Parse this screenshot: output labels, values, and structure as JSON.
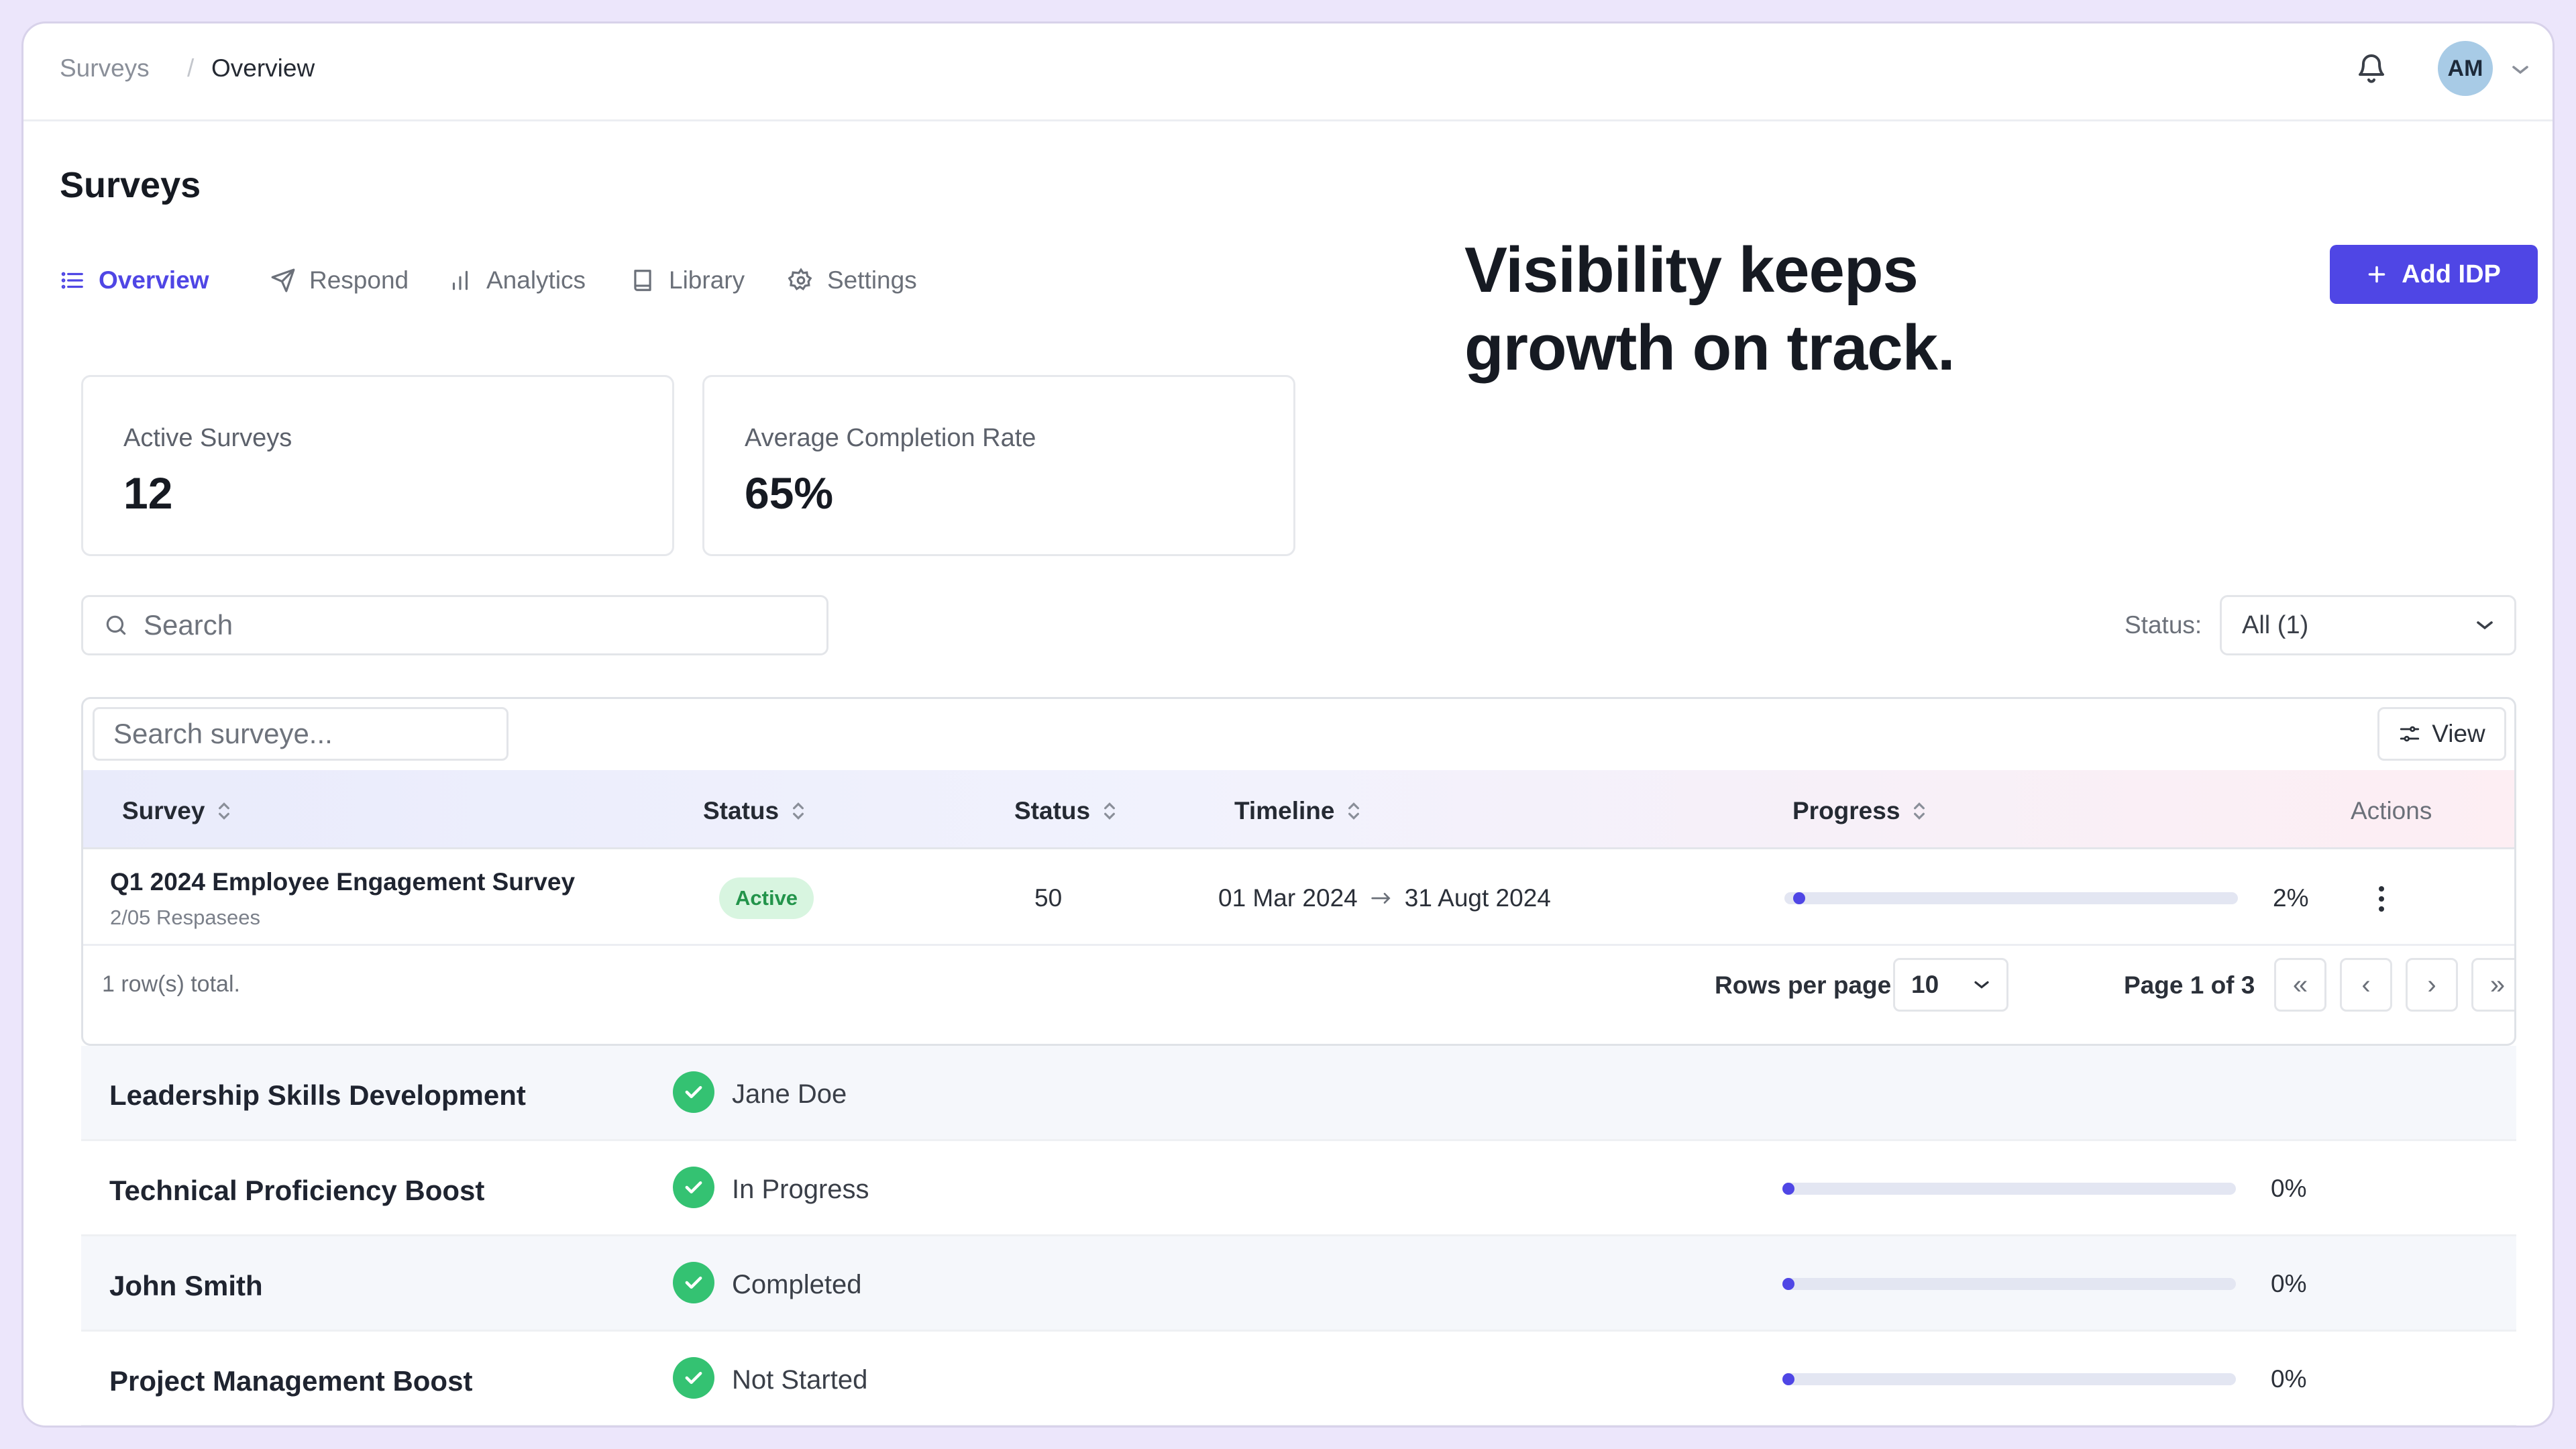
{
  "breadcrumb": [
    "Surveys",
    "Overview"
  ],
  "user": {
    "initials": "AM"
  },
  "page": {
    "title": "Surveys"
  },
  "tabs": [
    {
      "label": "Overview",
      "icon": "list-icon",
      "active": true
    },
    {
      "label": "Respond",
      "icon": "send-icon",
      "active": false
    },
    {
      "label": "Analytics",
      "icon": "bar-chart-icon",
      "active": false
    },
    {
      "label": "Library",
      "icon": "book-icon",
      "active": false
    },
    {
      "label": "Settings",
      "icon": "gear-icon",
      "active": false
    }
  ],
  "headline": [
    "Visibility keeps",
    "growth on track."
  ],
  "add_button": {
    "label": "Add IDP"
  },
  "stats": [
    {
      "label": "Active Surveys",
      "value": "12"
    },
    {
      "label": "Average Completion Rate",
      "value": "65%"
    }
  ],
  "search": {
    "placeholder": "Search"
  },
  "status_filter": {
    "label": "Status:",
    "value": "All (1)"
  },
  "table": {
    "search_placeholder": "Search surveye...",
    "view_label": "View",
    "columns": [
      "Survey",
      "Status",
      "Status",
      "Timeline",
      "Progress",
      "Actions"
    ],
    "rows": [
      {
        "name": "Q1 2024 Employee Engagement Survey",
        "sub": "2/05 Respasees",
        "badge": "Active",
        "count": "50",
        "start": "01 Mar 2024",
        "end": "31 Augt 2024",
        "progress": 2,
        "progress_label": "2%"
      }
    ],
    "footer": {
      "total": "1 row(s) total.",
      "rows_per_page_label": "Rows per page",
      "rows_per_page": "10",
      "page_info": "Page 1 of 3",
      "buttons": [
        "«",
        "‹",
        "›",
        "»"
      ]
    }
  },
  "lower_rows": [
    {
      "name": "Leadership Skills Development",
      "status": "Jane Doe",
      "progress": null,
      "progress_label": ""
    },
    {
      "name": "Technical Proficiency Boost",
      "status": "In Progress",
      "progress": 0,
      "progress_label": "0%"
    },
    {
      "name": "John Smith",
      "status": "Completed",
      "progress": 0,
      "progress_label": "0%"
    },
    {
      "name": "Project Management Boost",
      "status": "Not Started",
      "progress": 0,
      "progress_label": "0%"
    }
  ],
  "colors": {
    "accent": "#4f46e5",
    "success": "#34c272",
    "badge_bg": "#d8f5e0"
  }
}
